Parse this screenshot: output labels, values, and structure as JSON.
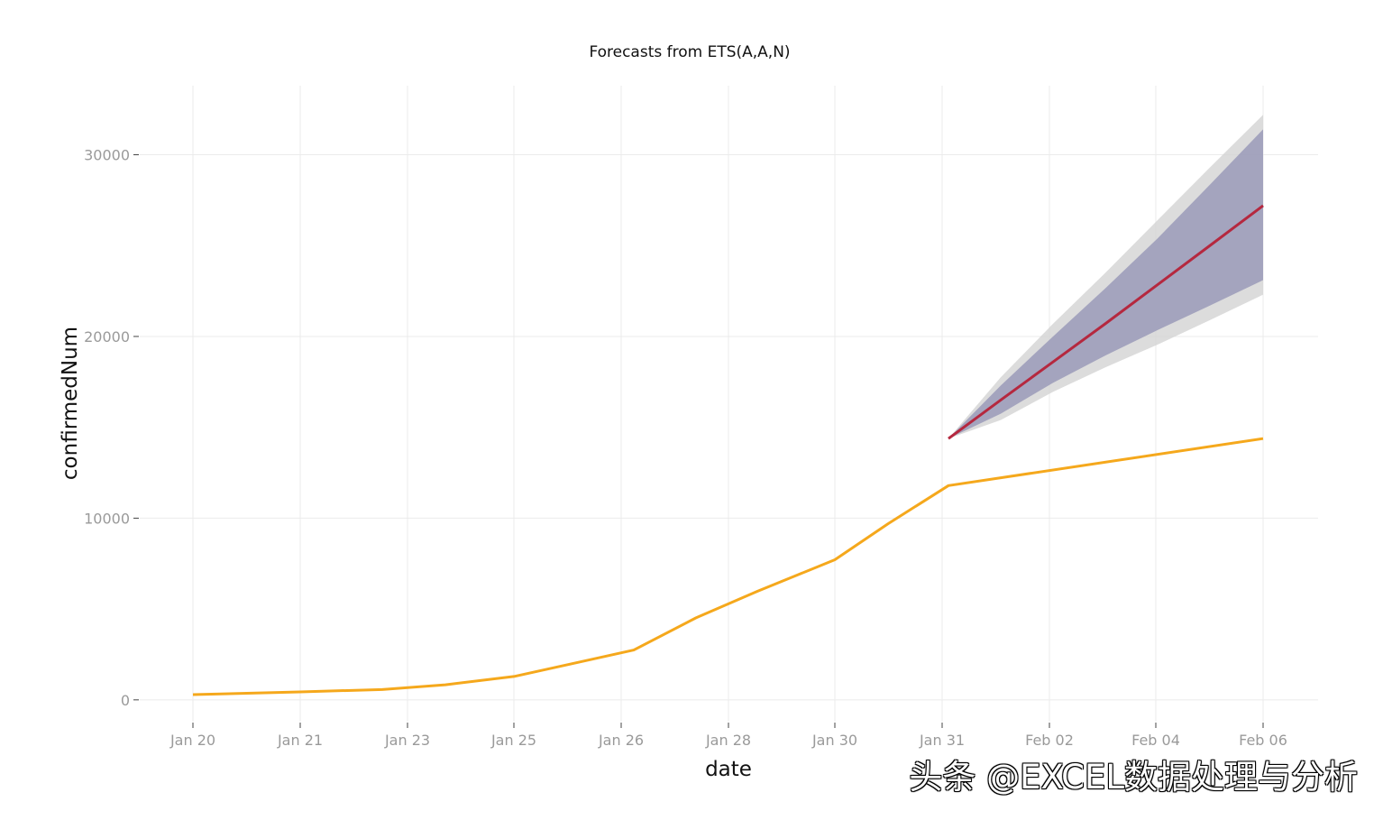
{
  "chart_data": {
    "type": "line",
    "title": "Forecasts from ETS(A,A,N)",
    "xlabel": "date",
    "ylabel": "confirmedNum",
    "x_ticks": [
      "Jan 20",
      "Jan 21",
      "Jan 23",
      "Jan 25",
      "Jan 26",
      "Jan 28",
      "Jan 30",
      "Jan 31",
      "Feb 02",
      "Feb 04",
      "Feb 06"
    ],
    "y_ticks": [
      "0",
      "10000",
      "20000",
      "30000"
    ],
    "ylim": [
      -1200,
      33800
    ],
    "grid": true,
    "legend": "none",
    "colors": {
      "observed": "#f5a81c",
      "forecast": "#b5283f",
      "interval_80": "#9a9ab8",
      "interval_95": "#d3d3d3",
      "grid": "#ebebeb"
    },
    "observed": {
      "x": [
        0,
        1,
        2,
        3,
        4,
        5,
        6,
        7,
        8,
        9,
        10,
        11,
        12
      ],
      "y": [
        290,
        440,
        571,
        830,
        1287,
        1975,
        2744,
        4515,
        5974,
        7711,
        9692,
        11791,
        14380
      ]
    },
    "forecast": {
      "x": [
        12,
        13,
        14,
        15,
        16,
        17,
        18,
        19
      ],
      "mean": [
        14380,
        16500,
        18600,
        20700,
        22850,
        25000,
        27200,
        27200
      ],
      "lo80": [
        14380,
        15750,
        17450,
        18950,
        20350,
        21700,
        23100,
        23100
      ],
      "hi80": [
        14380,
        17300,
        20000,
        22650,
        25400,
        28350,
        31400,
        31400
      ],
      "lo95": [
        14380,
        15400,
        16950,
        18300,
        19550,
        20900,
        22300,
        22300
      ],
      "hi95": [
        14380,
        17750,
        20700,
        23500,
        26400,
        29300,
        32200,
        32200
      ]
    }
  },
  "watermark": "头条 @EXCEL数据处理与分析"
}
